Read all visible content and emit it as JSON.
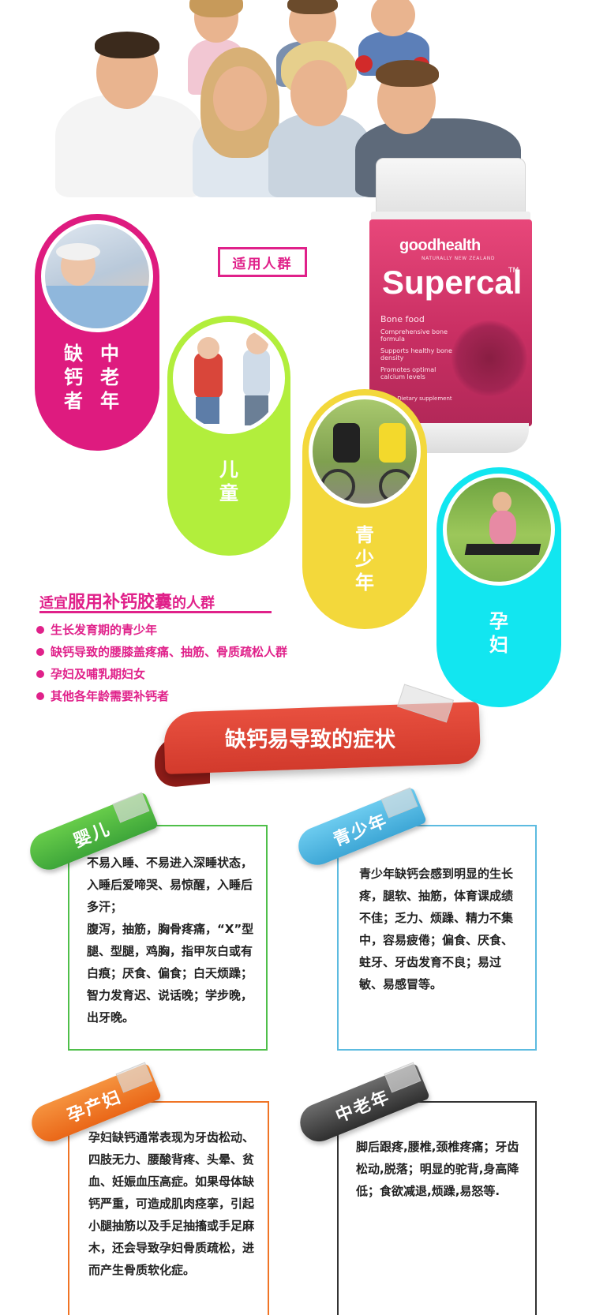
{
  "product": {
    "brand": "goodhealth",
    "brand_sub": "NATURALLY NEW ZEALAND",
    "name": "Supercal",
    "tm": "TM",
    "subtitle": "Bone food",
    "desc": [
      "Comprehensive bone formula",
      "Supports healthy bone density",
      "Promotes optimal calcium levels"
    ],
    "footer": "lets • Dietary supplement"
  },
  "suitable_tag": "适用人群",
  "groups": [
    {
      "label": "中老年缺钙者",
      "col1": "缺钙者",
      "col2": "中老年"
    },
    {
      "label": "儿童"
    },
    {
      "label": "青少年"
    },
    {
      "label": "孕妇"
    }
  ],
  "suitable": {
    "heading_pre": "适宜",
    "heading_main": "服用补钙胶囊",
    "heading_post": "的人群",
    "items": [
      "生长发育期的青少年",
      "缺钙导致的腰膝盖疼痛、抽筋、骨质疏松人群",
      "孕妇及哺乳期妇女",
      "其他各年龄需要补钙者"
    ]
  },
  "symptoms": {
    "banner": "缺钙易导致的症状",
    "infant": {
      "tag": "婴儿",
      "paragraphs": [
        "不易入睡、不易进入深睡状态，入睡后爱啼哭、易惊醒，入睡后多汗；",
        "腹泻，抽筋，胸骨疼痛，“X”型腿、型腿，鸡胸，指甲灰白或有白痕；厌食、偏食；白天烦躁；智力发育迟、说话晚；学步晚，出牙晚。"
      ]
    },
    "teen": {
      "tag": "青少年",
      "paragraphs": [
        "青少年缺钙会感到明显的生长疼，腿软、抽筋，体育课成绩不佳；乏力、烦躁、精力不集中，容易疲倦；偏食、厌食、蛀牙、牙齿发育不良；易过敏、易感冒等。"
      ]
    },
    "pregnant": {
      "tag": "孕产妇",
      "paragraphs": [
        "孕妇缺钙通常表现为牙齿松动、四肢无力、腰酸背疼、头晕、贫血、妊娠血压高症。如果母体缺钙严重，可造成肌肉痉挛，引起小腿抽筋以及手足抽搐或手足麻木，还会导致孕妇骨质疏松，进而产生骨质软化症。"
      ]
    },
    "elderly": {
      "tag": "中老年",
      "paragraphs": [
        "脚后跟疼,腰椎,颈椎疼痛；牙齿松动,脱落；明显的驼背,身高降低；食欲减退,烦躁,易怒等."
      ]
    }
  },
  "colors": {
    "magenta": "#de1b7f",
    "green": "#b2ee3c",
    "yellow": "#f3d83b",
    "cyan": "#12e6f0",
    "ribbon_red": "#d23a2c"
  }
}
